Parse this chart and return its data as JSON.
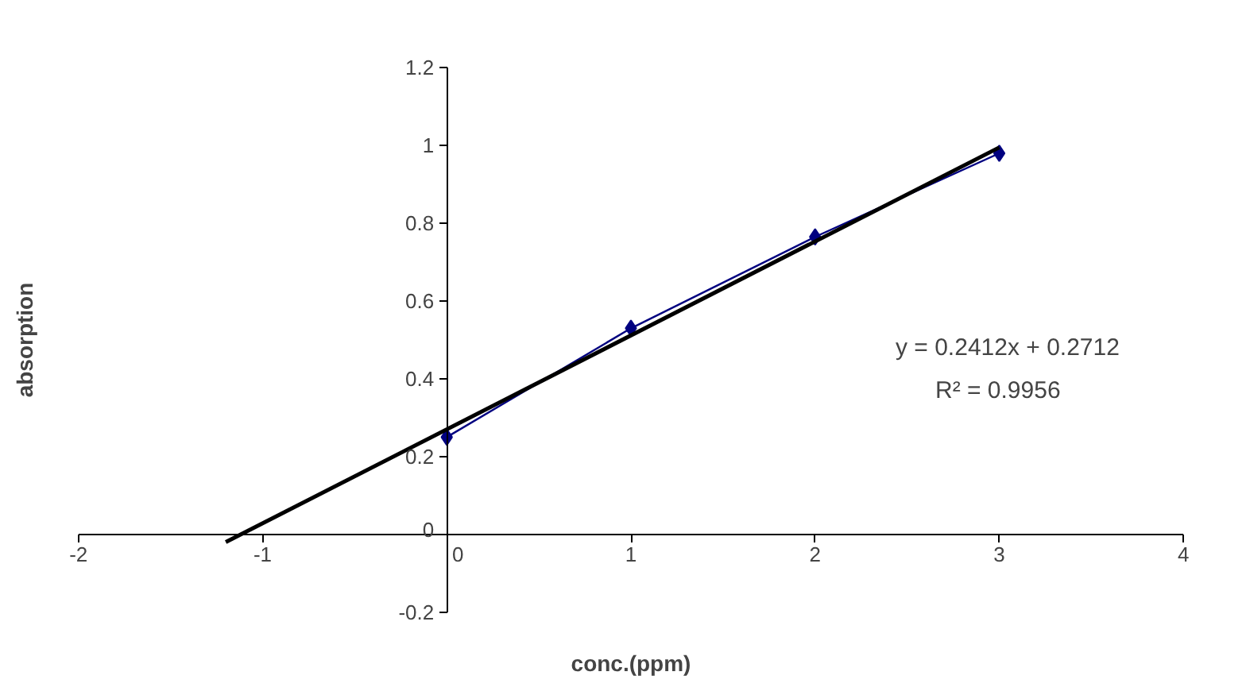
{
  "chart_data": {
    "type": "line",
    "xlabel": "conc.(ppm)",
    "ylabel": "absorption",
    "annotations": [
      "y = 0.2412x + 0.2712",
      "R² = 0.9956"
    ],
    "series": [
      {
        "color": "#000080",
        "x": [
          0,
          1,
          2,
          3
        ],
        "values": [
          0.25,
          0.53,
          0.765,
          0.98
        ],
        "marker": "diamond",
        "line_style": "solid"
      },
      {
        "color": "#000000",
        "x": [
          -1.2,
          3
        ],
        "values": [
          -0.02,
          0.995
        ],
        "marker": "none",
        "line_style": "solid"
      }
    ],
    "xlim": [
      -2,
      4
    ],
    "ylim": [
      -0.2,
      1.2
    ],
    "xticks": [
      -2,
      -1,
      0,
      1,
      2,
      3,
      4
    ],
    "yticks": [
      -0.2,
      0,
      0.2,
      0.4,
      0.6,
      0.8,
      1,
      1.2
    ],
    "grid": false
  }
}
